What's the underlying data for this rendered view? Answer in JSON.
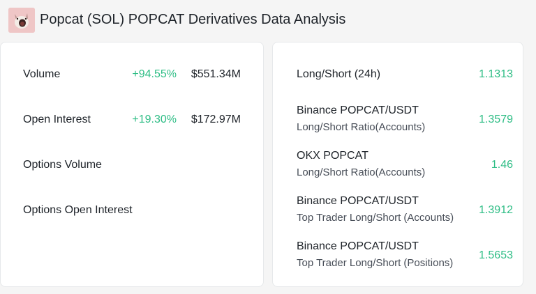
{
  "header": {
    "coin": "Popcat (SOL)",
    "symbol": "POPCAT",
    "title_suffix": "Derivatives Data Analysis",
    "logo_icon": "popcat-logo-icon"
  },
  "left_card": {
    "rows": [
      {
        "label": "Volume",
        "change": "+94.55%",
        "amount": "$551.34M"
      },
      {
        "label": "Open Interest",
        "change": "+19.30%",
        "amount": "$172.97M"
      },
      {
        "label": "Options Volume",
        "change": "",
        "amount": ""
      },
      {
        "label": "Options Open Interest",
        "change": "",
        "amount": ""
      }
    ]
  },
  "right_card": {
    "rows": [
      {
        "line1": "Long/Short (24h)",
        "line2": "",
        "value": "1.1313"
      },
      {
        "line1": "Binance POPCAT/USDT",
        "line2": "Long/Short Ratio(Accounts)",
        "value": "1.3579"
      },
      {
        "line1": "OKX POPCAT",
        "line2": "Long/Short Ratio(Accounts)",
        "value": "1.46"
      },
      {
        "line1": "Binance POPCAT/USDT",
        "line2": "Top Trader Long/Short (Accounts)",
        "value": "1.3912"
      },
      {
        "line1": "Binance POPCAT/USDT",
        "line2": "Top Trader Long/Short (Positions)",
        "value": "1.5653"
      }
    ]
  },
  "colors": {
    "positive": "#2ebd85",
    "text": "#1e2329",
    "muted": "#474d57",
    "background": "#f5f5f5",
    "card": "#ffffff"
  }
}
